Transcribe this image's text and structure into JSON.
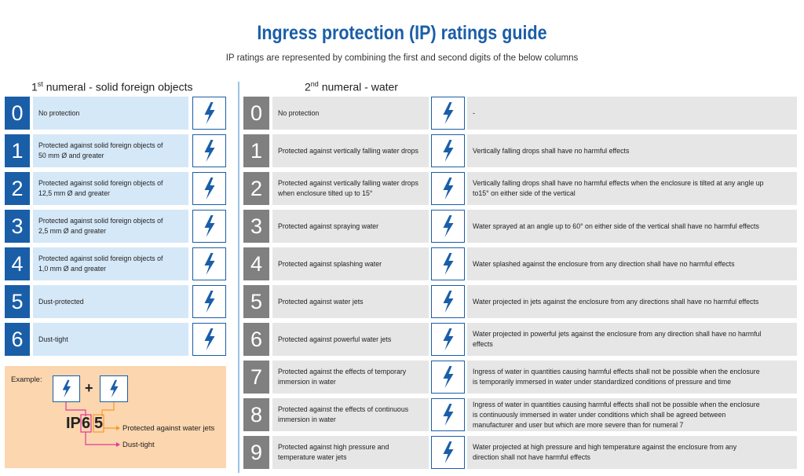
{
  "title": "Ingress protection (IP) ratings guide",
  "subtitle": "IP ratings are represented by combining the first and second digits of the below columns",
  "solids": {
    "heading": {
      "number": "1",
      "ordinal": "st",
      "text": "numeral - solid foreign objects"
    },
    "rows": [
      {
        "digit": "0",
        "description": [
          "No protection"
        ]
      },
      {
        "digit": "1",
        "description": [
          "Protected against solid foreign objects of",
          "50 mm Ø and greater"
        ]
      },
      {
        "digit": "2",
        "description": [
          "Protected against solid foreign objects of",
          "12,5 mm Ø and greater"
        ]
      },
      {
        "digit": "3",
        "description": [
          "Protected against solid foreign objects of",
          "2,5 mm Ø and greater"
        ]
      },
      {
        "digit": "4",
        "description": [
          "Protected against solid foreign objects of",
          "1,0 mm Ø and greater"
        ]
      },
      {
        "digit": "5",
        "description": [
          "Dust-protected"
        ]
      },
      {
        "digit": "6",
        "description": [
          "Dust-tight"
        ]
      }
    ]
  },
  "water": {
    "heading": {
      "number": "2",
      "ordinal": "nd",
      "text": "numeral - water"
    },
    "rows": [
      {
        "digit": "0",
        "description": [
          "No protection"
        ],
        "detail": [
          "-"
        ]
      },
      {
        "digit": "1",
        "description": [
          "Protected against vertically falling water drops"
        ],
        "detail": [
          "Vertically falling drops shall have no harmful effects"
        ]
      },
      {
        "digit": "2",
        "description": [
          "Protected against vertically falling water drops",
          "when enclosure tilted up to 15°"
        ],
        "detail": [
          "Vertically falling drops shall have no harmful effects when the enclosure is tilted at any angle up",
          "to15° on either side of the vertical"
        ]
      },
      {
        "digit": "3",
        "description": [
          "Protected against spraying water"
        ],
        "detail": [
          "Water sprayed at an angle up to 60° on either side of the vertical shall have no harmful effects"
        ]
      },
      {
        "digit": "4",
        "description": [
          "Protected against splashing water"
        ],
        "detail": [
          "Water splashed against the enclosure from any direction shall have no harmful effects"
        ]
      },
      {
        "digit": "5",
        "description": [
          "Protected against water jets"
        ],
        "detail": [
          "Water projected in jets against the enclosure from any directions shall have no harmful effects"
        ]
      },
      {
        "digit": "6",
        "description": [
          "Protected against powerful water jets"
        ],
        "detail": [
          "Water projected in powerful jets against the enclosure from any direction shall have no harmful",
          "effects"
        ]
      },
      {
        "digit": "7",
        "description": [
          "Protected against the effects of temporary",
          "immersion in water"
        ],
        "detail": [
          "Ingress of water in quantities causing harmful effects shall not be possible when the enclosure",
          "is temporarily immersed in water under standardized conditions of pressure and time"
        ]
      },
      {
        "digit": "8",
        "description": [
          "Protected against the effects of continuous",
          "immersion in water"
        ],
        "detail": [
          "Ingress of water in quantities causing harmful effects shall not be possible when the enclosure",
          "is continuously immersed in water under conditions which shall be agreed between",
          "manufacturer and user but which are more severe than for numeral 7"
        ]
      },
      {
        "digit": "9",
        "description": [
          "Protected against high pressure and",
          "temperature water jets"
        ],
        "detail": [
          "Water projected at high pressure and high temperature against the enclosure from any",
          "direction shall not have harmful effects"
        ]
      }
    ]
  },
  "example": {
    "label": "Example:",
    "plus": "+",
    "prefix": "IP",
    "first": "6",
    "second": "5",
    "second_meaning": "Protected against water jets",
    "first_meaning": "Dust-tight"
  }
}
